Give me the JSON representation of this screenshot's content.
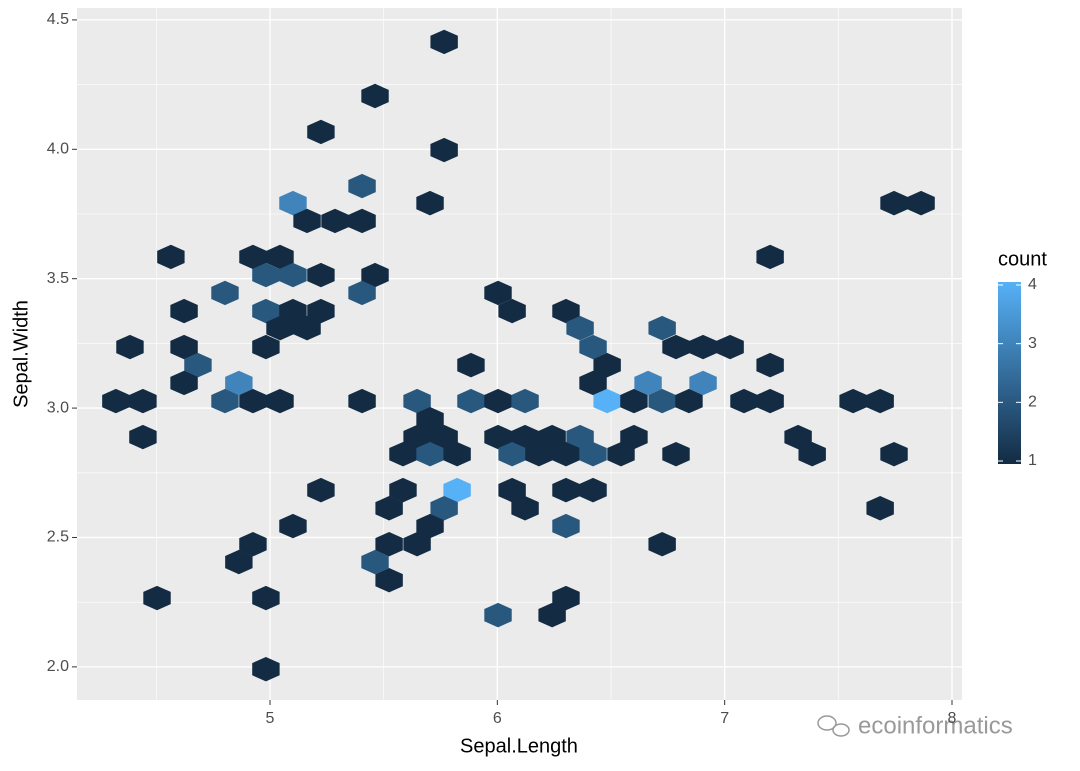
{
  "chart_data": {
    "type": "hexbin",
    "x_label": "Sepal.Length",
    "y_label": "Sepal.Width",
    "legend_title": "count",
    "watermark": "ecoinformatics",
    "xlim": [
      4.151,
      8.044
    ],
    "ylim": [
      1.872,
      4.546
    ],
    "xticks": [
      5,
      6,
      7,
      8
    ],
    "yticks": [
      {
        "value": 2,
        "label": "2.0"
      },
      {
        "value": 2.5,
        "label": "2.5"
      },
      {
        "value": 3,
        "label": "3.0"
      },
      {
        "value": 3.5,
        "label": "3.5"
      },
      {
        "value": 4,
        "label": "4.0"
      },
      {
        "value": 4.5,
        "label": "4.5"
      }
    ],
    "xminor": [
      4.5,
      5.5,
      6.5,
      7.5
    ],
    "yminor": [
      2.25,
      2.75,
      3.25,
      3.75,
      4.25
    ],
    "grid": true,
    "color_low": "#132B43",
    "color_high": "#56B1F7",
    "color_lim": [
      1,
      4
    ],
    "color_ticks": [
      1,
      2,
      3,
      4
    ],
    "x": [
      5.766,
      5.462,
      5.224,
      5.766,
      5.405,
      5.101,
      5.163,
      5.286,
      5.405,
      5.704,
      7.745,
      7.864,
      4.564,
      4.925,
      5.044,
      4.982,
      5.101,
      5.224,
      5.462,
      7.2,
      4.802,
      5.405,
      6.003,
      4.622,
      4.982,
      5.101,
      5.224,
      5.163,
      5.044,
      6.065,
      6.302,
      6.364,
      6.725,
      4.384,
      4.622,
      4.982,
      6.421,
      6.786,
      6.905,
      7.024,
      4.683,
      5.884,
      6.483,
      7.2,
      4.622,
      4.863,
      6.421,
      6.663,
      6.905,
      4.322,
      4.441,
      4.802,
      4.925,
      5.044,
      5.405,
      5.647,
      5.884,
      6.003,
      6.122,
      6.483,
      6.601,
      6.725,
      6.843,
      7.085,
      7.2,
      7.565,
      7.684,
      5.704,
      4.441,
      5.647,
      5.766,
      6.003,
      6.122,
      6.241,
      6.364,
      6.601,
      7.323,
      5.585,
      5.704,
      5.823,
      6.065,
      6.183,
      6.302,
      6.421,
      6.544,
      6.786,
      7.385,
      7.745,
      5.224,
      5.585,
      5.823,
      6.065,
      6.302,
      6.421,
      5.524,
      5.766,
      6.122,
      7.684,
      5.101,
      5.704,
      6.302,
      4.925,
      5.524,
      5.647,
      6.725,
      4.863,
      5.462,
      5.524,
      4.503,
      4.982,
      6.302,
      6.003,
      6.241,
      4.982
    ],
    "y": [
      4.415,
      4.206,
      4.067,
      3.997,
      3.858,
      3.792,
      3.723,
      3.723,
      3.723,
      3.792,
      3.792,
      3.792,
      3.584,
      3.584,
      3.584,
      3.514,
      3.514,
      3.514,
      3.514,
      3.584,
      3.445,
      3.445,
      3.445,
      3.375,
      3.375,
      3.375,
      3.375,
      3.309,
      3.309,
      3.375,
      3.375,
      3.309,
      3.309,
      3.236,
      3.236,
      3.236,
      3.236,
      3.236,
      3.236,
      3.236,
      3.166,
      3.166,
      3.166,
      3.166,
      3.097,
      3.097,
      3.097,
      3.097,
      3.097,
      3.027,
      3.027,
      3.027,
      3.027,
      3.027,
      3.027,
      3.027,
      3.027,
      3.027,
      3.027,
      3.027,
      3.027,
      3.027,
      3.027,
      3.027,
      3.027,
      3.027,
      3.027,
      2.957,
      2.888,
      2.888,
      2.888,
      2.888,
      2.888,
      2.888,
      2.888,
      2.888,
      2.888,
      2.822,
      2.822,
      2.822,
      2.822,
      2.822,
      2.822,
      2.822,
      2.822,
      2.822,
      2.822,
      2.822,
      2.683,
      2.683,
      2.683,
      2.683,
      2.683,
      2.683,
      2.613,
      2.613,
      2.613,
      2.613,
      2.544,
      2.544,
      2.544,
      2.474,
      2.474,
      2.474,
      2.474,
      2.405,
      2.405,
      2.335,
      2.266,
      2.266,
      2.266,
      2.2,
      2.2,
      1.991
    ],
    "counts": [
      1,
      1,
      1,
      1,
      2,
      3,
      1,
      1,
      1,
      1,
      1,
      1,
      1,
      1,
      1,
      2,
      2,
      1,
      1,
      1,
      2,
      2,
      1,
      1,
      2,
      1,
      1,
      1,
      1,
      1,
      1,
      2,
      2,
      1,
      1,
      1,
      2,
      1,
      1,
      1,
      2,
      1,
      1,
      1,
      1,
      3,
      1,
      3,
      3,
      1,
      1,
      2,
      1,
      1,
      1,
      2,
      2,
      1,
      2,
      4,
      1,
      2,
      1,
      1,
      1,
      1,
      1,
      1,
      1,
      1,
      1,
      1,
      1,
      1,
      2,
      1,
      1,
      1,
      2,
      1,
      2,
      1,
      1,
      2,
      1,
      1,
      1,
      1,
      1,
      1,
      4,
      1,
      1,
      1,
      1,
      2,
      1,
      1,
      1,
      1,
      2,
      1,
      1,
      1,
      1,
      1,
      2,
      1,
      1,
      1,
      1,
      2,
      1,
      1
    ]
  }
}
